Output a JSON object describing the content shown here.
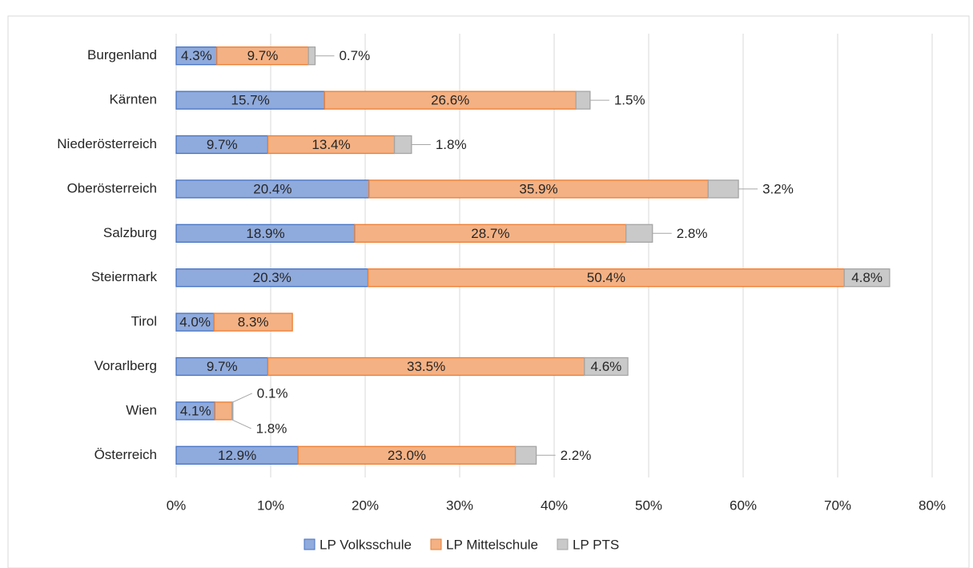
{
  "chart_data": {
    "type": "stacked_bar_horizontal",
    "categories": [
      "Burgenland",
      "Kärnten",
      "Niederösterreich",
      "Oberösterreich",
      "Salzburg",
      "Steiermark",
      "Tirol",
      "Vorarlberg",
      "Wien",
      "Österreich"
    ],
    "series": [
      {
        "name": "LP Volksschule",
        "color": "#8faadc",
        "stroke": "#4472c4",
        "values": [
          4.3,
          15.7,
          9.7,
          20.4,
          18.9,
          20.3,
          4.0,
          9.7,
          4.1,
          12.9
        ],
        "value_labels": [
          "4.3%",
          "15.7%",
          "9.7%",
          "20.4%",
          "18.9%",
          "20.3%",
          "4.0%",
          "9.7%",
          "4.1%",
          "12.9%"
        ]
      },
      {
        "name": "LP Mittelschule",
        "color": "#f4b183",
        "stroke": "#ed7d31",
        "values": [
          9.7,
          26.6,
          13.4,
          35.9,
          28.7,
          50.4,
          8.3,
          33.5,
          1.8,
          23.0
        ],
        "value_labels": [
          "9.7%",
          "26.6%",
          "13.4%",
          "35.9%",
          "28.7%",
          "50.4%",
          "8.3%",
          "33.5%",
          "1.8%",
          "23.0%"
        ]
      },
      {
        "name": "LP PTS",
        "color": "#c9c9c9",
        "stroke": "#a5a5a5",
        "values": [
          0.7,
          1.5,
          1.8,
          3.2,
          2.8,
          4.8,
          null,
          4.6,
          0.1,
          2.2
        ],
        "value_labels": [
          "0.7%",
          "1.5%",
          "1.8%",
          "3.2%",
          "2.8%",
          "4.8%",
          null,
          "4.6%",
          "0.1%",
          "2.2%"
        ]
      }
    ],
    "xlim": [
      0,
      80
    ],
    "xticks": [
      {
        "value": 0,
        "label": "0%"
      },
      {
        "value": 10,
        "label": "10%"
      },
      {
        "value": 20,
        "label": "20%"
      },
      {
        "value": 30,
        "label": "30%"
      },
      {
        "value": 40,
        "label": "40%"
      },
      {
        "value": 50,
        "label": "50%"
      },
      {
        "value": 60,
        "label": "60%"
      },
      {
        "value": 70,
        "label": "70%"
      },
      {
        "value": 80,
        "label": "80%"
      }
    ],
    "grid": true,
    "legend": "bottom"
  }
}
